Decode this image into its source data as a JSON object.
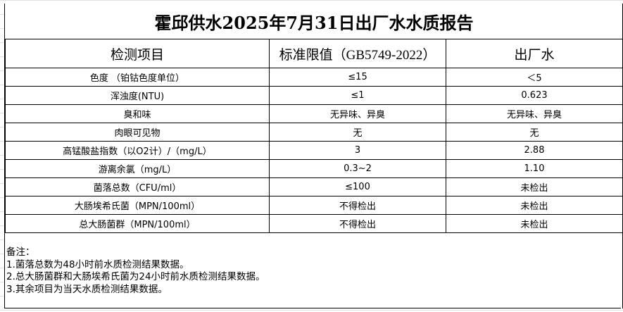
{
  "title": "霍邱供水2025年7月31日出厂水水质报告",
  "headers": [
    "检测项目",
    "标准限值（GB5749-2022）",
    "出厂水"
  ],
  "rows": [
    [
      "色度 （铂钴色度单位）",
      "≤15",
      "＜5"
    ],
    [
      "浑浊度(NTU)",
      "≤1",
      "0.623"
    ],
    [
      "臭和味",
      "无异味、异臭",
      "无异味、异臭"
    ],
    [
      "肉眼可见物",
      "无",
      "无"
    ],
    [
      "高锰酸盐指数（以O2计）/（mg/L）",
      "3",
      "2.88"
    ],
    [
      "游离余氯（mg/L）",
      "0.3~2",
      "1.10"
    ],
    [
      "菌落总数（CFU/ml）",
      "≤100",
      "未检出"
    ],
    [
      "大肠埃希氏菌（MPN/100ml）",
      "不得检出",
      "未检出"
    ],
    [
      "总大肠菌群（MPN/100ml）",
      "不得检出",
      "未检出"
    ]
  ],
  "notes": {
    "label": "备注：",
    "lines": [
      "1.菌落总数为48小时前水质检测结果数据。",
      "2.总大肠菌群和大肠埃希氏菌为24小时前水质检测结果数据。",
      "3.其余项目为当天水质检测结果数据。"
    ]
  }
}
